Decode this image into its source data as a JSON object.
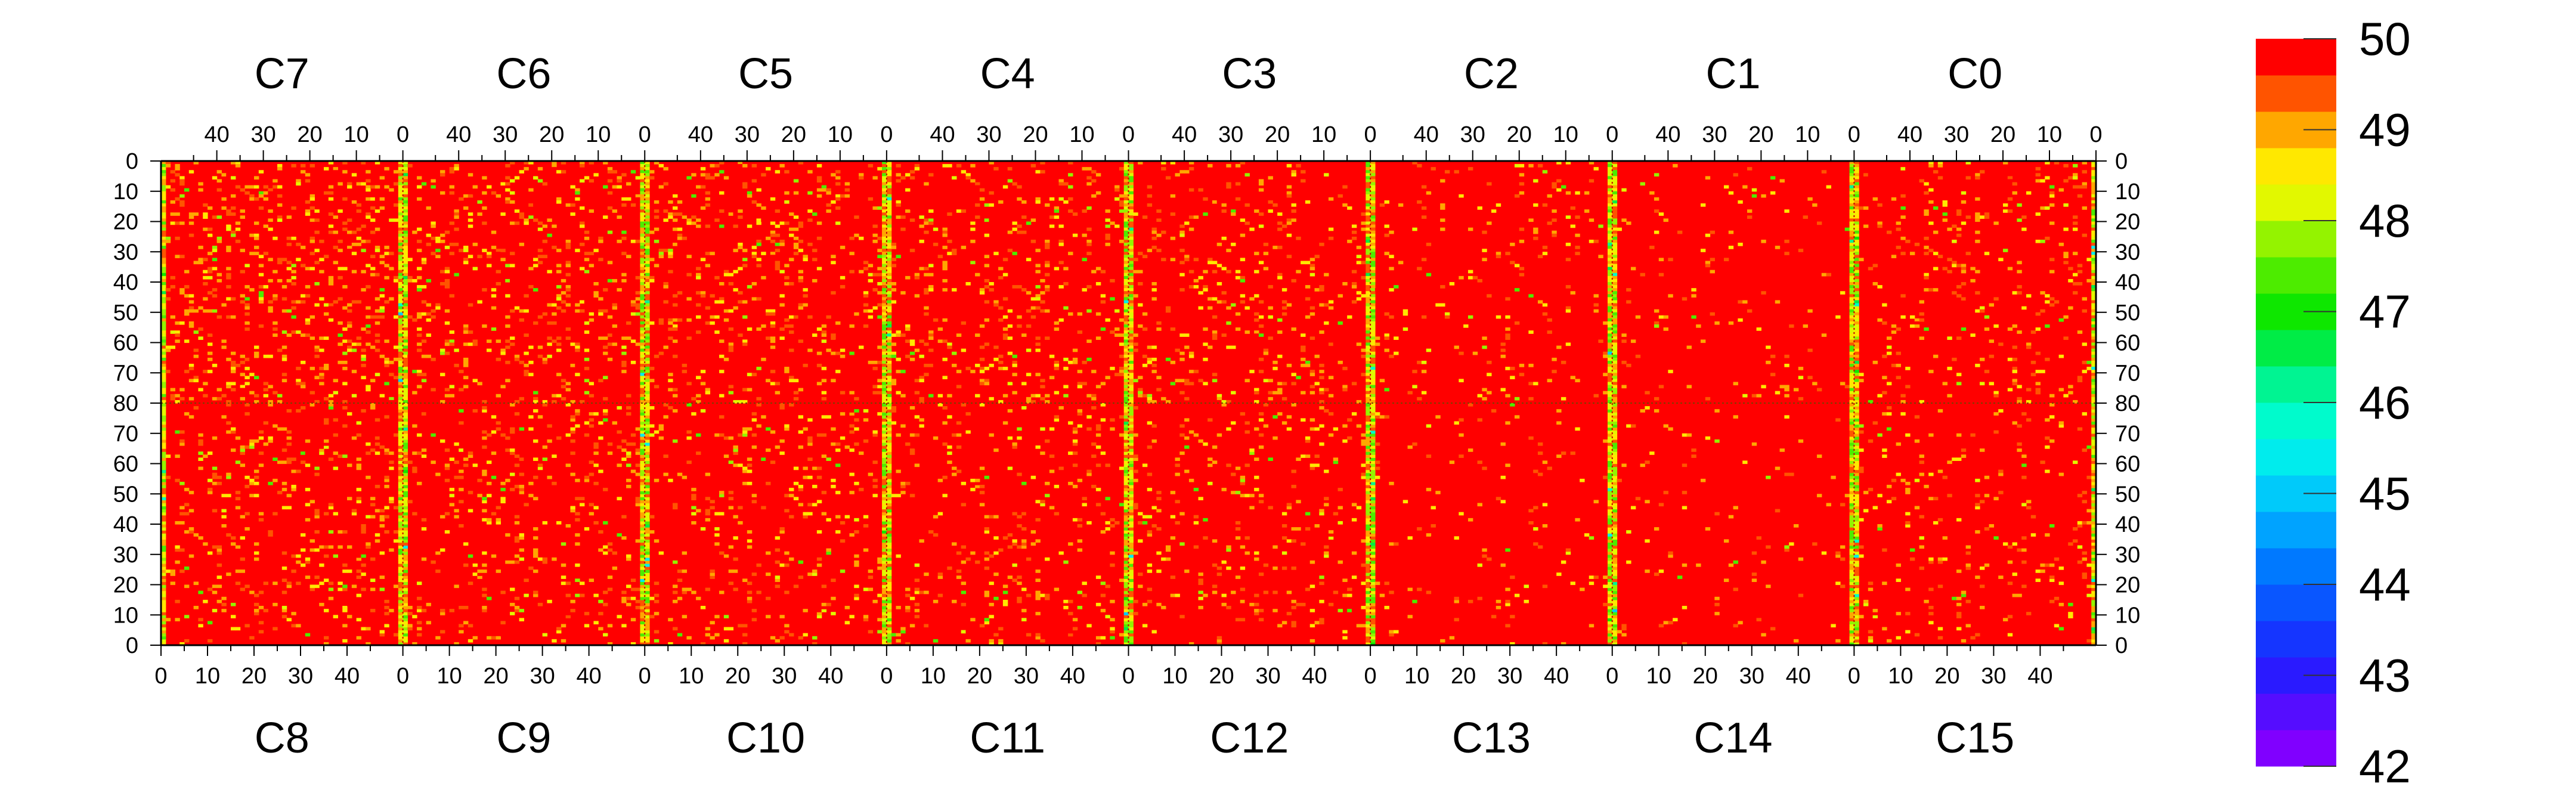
{
  "chart_data": {
    "type": "heatmap",
    "title": "",
    "xlabel": "",
    "ylabel": "",
    "chips_top": [
      "C7",
      "C6",
      "C5",
      "C4",
      "C3",
      "C2",
      "C1",
      "C0"
    ],
    "chips_bottom": [
      "C8",
      "C9",
      "C10",
      "C11",
      "C12",
      "C13",
      "C14",
      "C15"
    ],
    "columns_per_chip": 52,
    "rows_per_chip": 80,
    "x_ticks_top": [
      "40",
      "30",
      "20",
      "10",
      "0"
    ],
    "x_ticks_bottom": [
      "0",
      "10",
      "20",
      "30",
      "40"
    ],
    "y_ticks_top_half": [
      "0",
      "10",
      "20",
      "30",
      "40",
      "50",
      "60",
      "70",
      "80"
    ],
    "y_ticks_bottom_half": [
      "70",
      "60",
      "50",
      "40",
      "30",
      "20",
      "10",
      "0"
    ],
    "zlim": [
      42,
      50
    ],
    "z_bins": 20,
    "colorbar_labels": [
      "50",
      "49",
      "48",
      "47",
      "46",
      "45",
      "44",
      "43",
      "42"
    ],
    "dominant_value": 50,
    "columns_with_lower_values": "first and last column of each chip",
    "grid": false,
    "legend": "colorbar-right"
  }
}
